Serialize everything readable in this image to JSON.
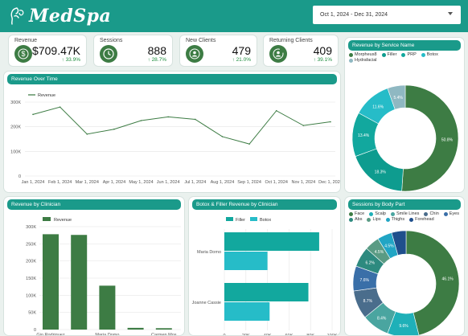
{
  "header": {
    "brand": "MedSpa",
    "date_range": "Oct 1, 2024 - Dec 31, 2024"
  },
  "colors": {
    "header": "#1a9a8a",
    "green": "#3d7c44",
    "teal": "#12a89e",
    "cyan": "#26bcc8",
    "delta_up": "#1e8e3e"
  },
  "kpis": [
    {
      "title": "Revenue",
      "value": "$709.47K",
      "delta": "33.9%",
      "icon": "dollar-icon"
    },
    {
      "title": "Sessions",
      "value": "888",
      "delta": "28.7%",
      "icon": "clock-icon"
    },
    {
      "title": "New Clients",
      "value": "479",
      "delta": "21.0%",
      "icon": "new-client-icon"
    },
    {
      "title": "Returning Clients",
      "value": "409",
      "delta": "39.1%",
      "icon": "returning-client-icon"
    }
  ],
  "panels": {
    "revenue_over_time": "Revenue Over Time",
    "revenue_by_service": "Revenue by Service Name",
    "revenue_by_clinician": "Revenue by Clinician",
    "botox_filler": "Botox & Filler Revenue by Clinician",
    "sessions_by_body_part": "Sessions by Body Part"
  },
  "chart_data": [
    {
      "id": "revenue_over_time",
      "type": "line",
      "x": [
        "Jan 1, 2024",
        "Feb 1, 2024",
        "Mar 1, 2024",
        "Apr 1, 2024",
        "May 1, 2024",
        "Jun 1, 2024",
        "Jul 1, 2024",
        "Aug 1, 2024",
        "Sep 1, 2024",
        "Oct 1, 2024",
        "Nov 1, 2024",
        "Dec 1, 2024"
      ],
      "series": [
        {
          "name": "Revenue",
          "values": [
            250000,
            280000,
            170000,
            190000,
            225000,
            240000,
            230000,
            160000,
            130000,
            265000,
            205000,
            220000
          ]
        }
      ],
      "ylim": [
        0,
        300000
      ],
      "yticks": [
        "0",
        "100K",
        "200K",
        "300K"
      ],
      "legend": "top-left",
      "grid": true
    },
    {
      "id": "revenue_by_service",
      "type": "pie",
      "labels": [
        "Morpheus8",
        "Filler",
        "PRP",
        "Botox",
        "Hydrafacial"
      ],
      "values": [
        50.8,
        18.3,
        13.4,
        11.6,
        5.4
      ],
      "display_labels": [
        "50.8%",
        "18.3%",
        "13.4%",
        "11.6%",
        "5.4%"
      ],
      "colors": [
        "#3d7c44",
        "#0e9c8f",
        "#12a89e",
        "#26bcc8",
        "#8fb8c2"
      ],
      "legend": "top"
    },
    {
      "id": "revenue_by_clinician",
      "type": "bar",
      "categories": [
        "Gio Rodriguez",
        "",
        "Maria Domo",
        "",
        "Carmen Mos"
      ],
      "series": [
        {
          "name": "Revenue",
          "values": [
            278000,
            276000,
            128000,
            5000,
            4000
          ]
        }
      ],
      "ylim": [
        0,
        300000
      ],
      "yticks": [
        "0",
        "50K",
        "100K",
        "150K",
        "200K",
        "250K",
        "300K"
      ],
      "legend": "top-left"
    },
    {
      "id": "botox_filler",
      "type": "bar",
      "orientation": "horizontal",
      "categories": [
        "Maria Domo",
        "Joanne Cassie"
      ],
      "series": [
        {
          "name": "Filler",
          "values": [
            88000,
            78000
          ]
        },
        {
          "name": "Botox",
          "values": [
            40000,
            42000
          ]
        }
      ],
      "xlim": [
        0,
        100000
      ],
      "xticks": [
        "0",
        "20K",
        "40K",
        "60K",
        "80K",
        "100K"
      ],
      "legend": "top-left"
    },
    {
      "id": "sessions_by_body_part",
      "type": "pie",
      "labels": [
        "Face",
        "Scalp",
        "Smile Lines",
        "Chin",
        "Eyes",
        "Abs",
        "Lips",
        "Thighs",
        "Forehead"
      ],
      "values": [
        46.1,
        9.6,
        8.4,
        8.7,
        7.6,
        6.2,
        4.5,
        4.5,
        4.4
      ],
      "display_labels": [
        "46.1%",
        "9.6%",
        "8.4%",
        "8.7%",
        "7.6%",
        "6.2%",
        "4.5%",
        "4.5%",
        ""
      ],
      "colors": [
        "#3d7c44",
        "#1fb0b8",
        "#4aa5a0",
        "#4a6d8c",
        "#3a6fa8",
        "#2d8a7f",
        "#5a9b84",
        "#21a5c4",
        "#1f4f8c"
      ],
      "legend": "top"
    }
  ]
}
